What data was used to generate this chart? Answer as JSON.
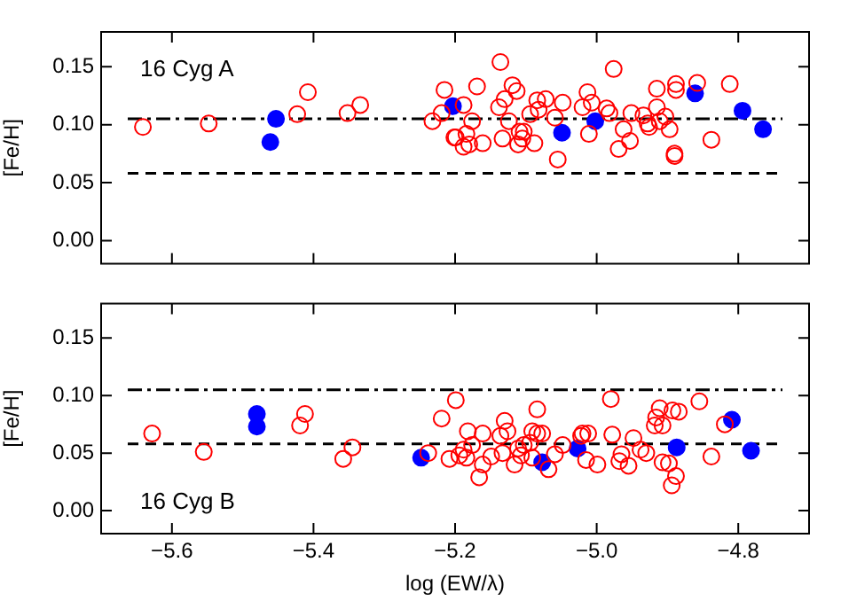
{
  "chart_data": [
    {
      "type": "scatter",
      "ylabel": "[Fe/H]",
      "annotations": [
        "16 Cyg A"
      ],
      "tick_labels": "y",
      "grid": false,
      "legend": false,
      "xlim": [
        -5.7,
        -4.7
      ],
      "xticks": [
        {
          "value": -5.6,
          "label": null
        },
        {
          "value": -5.4,
          "label": null
        },
        {
          "value": -5.2,
          "label": null
        },
        {
          "value": -5.0,
          "label": null
        },
        {
          "value": -4.8,
          "label": null
        }
      ],
      "ylim": [
        -0.02,
        0.18
      ],
      "yticks": [
        {
          "value": 0,
          "label": "0.00"
        },
        {
          "value": 0.05,
          "label": "0.05"
        },
        {
          "value": 0.1,
          "label": "0.10"
        },
        {
          "value": 0.15,
          "label": "0.15"
        }
      ],
      "ref_lines": [
        {
          "axis": "y",
          "value": 0.105,
          "line_style": "dashdot",
          "color": "#000000"
        },
        {
          "axis": "y",
          "value": 0.058,
          "line_style": "dashed",
          "color": "#000000"
        }
      ],
      "series": [
        {
          "color": "#ff0000",
          "marker": "circle-open",
          "x": [
            -5.641,
            -5.548,
            -5.423,
            -5.408,
            -5.352,
            -5.334,
            -5.232,
            -5.219,
            -5.215,
            -5.199,
            -5.188,
            -5.176,
            -5.201,
            -5.184,
            -5.188,
            -5.18,
            -5.169,
            -5.161,
            -5.136,
            -5.138,
            -5.13,
            -5.119,
            -5.113,
            -5.124,
            -5.133,
            -5.109,
            -5.103,
            -5.111,
            -5.105,
            -5.088,
            -5.094,
            -5.084,
            -5.082,
            -5.072,
            -5.059,
            -5.048,
            -5.055,
            -5.013,
            -5.02,
            -5.007,
            -5.011,
            -4.976,
            -4.986,
            -4.982,
            -4.962,
            -4.951,
            -4.969,
            -4.953,
            -4.934,
            -4.928,
            -4.926,
            -4.915,
            -4.915,
            -4.911,
            -4.903,
            -4.897,
            -4.888,
            -4.888,
            -4.89,
            -4.89,
            -4.858,
            -4.838,
            -4.812
          ],
          "values": [
            0.098,
            0.101,
            0.109,
            0.128,
            0.11,
            0.117,
            0.103,
            0.11,
            0.13,
            0.089,
            0.117,
            0.103,
            0.089,
            0.092,
            0.081,
            0.083,
            0.133,
            0.084,
            0.154,
            0.115,
            0.122,
            0.134,
            0.129,
            0.103,
            0.088,
            0.094,
            0.094,
            0.083,
            0.088,
            0.084,
            0.109,
            0.121,
            0.113,
            0.122,
            0.106,
            0.119,
            0.07,
            0.128,
            0.115,
            0.119,
            0.092,
            0.148,
            0.114,
            0.11,
            0.096,
            0.11,
            0.079,
            0.086,
            0.108,
            0.101,
            0.098,
            0.131,
            0.115,
            0.103,
            0.107,
            0.096,
            0.135,
            0.13,
            0.075,
            0.073,
            0.136,
            0.087,
            0.135
          ]
        },
        {
          "color": "#0000ff",
          "marker": "circle",
          "x": [
            -5.461,
            -5.453,
            -5.203,
            -5.049,
            -5.002,
            -4.861,
            -4.794,
            -4.765
          ],
          "values": [
            0.085,
            0.105,
            0.116,
            0.093,
            0.103,
            0.127,
            0.112,
            0.096
          ]
        }
      ]
    },
    {
      "type": "scatter",
      "xlabel": "log (EW/λ)",
      "ylabel": "[Fe/H]",
      "annotations": [
        "16 Cyg B"
      ],
      "grid": false,
      "legend": false,
      "xlim": [
        -5.7,
        -4.7
      ],
      "xticks": [
        {
          "value": -5.6,
          "label": "−5.6"
        },
        {
          "value": -5.4,
          "label": "−5.4"
        },
        {
          "value": -5.2,
          "label": "−5.2"
        },
        {
          "value": -5.0,
          "label": "−5.0"
        },
        {
          "value": -4.8,
          "label": "−4.8"
        }
      ],
      "ylim": [
        -0.02,
        0.18
      ],
      "yticks": [
        {
          "value": 0,
          "label": "0.00"
        },
        {
          "value": 0.05,
          "label": "0.05"
        },
        {
          "value": 0.1,
          "label": "0.10"
        },
        {
          "value": 0.15,
          "label": "0.15"
        }
      ],
      "ref_lines": [
        {
          "axis": "y",
          "value": 0.105,
          "line_style": "dashdot",
          "color": "#000000"
        },
        {
          "axis": "y",
          "value": 0.058,
          "line_style": "dashed",
          "color": "#000000"
        }
      ],
      "series": [
        {
          "color": "#ff0000",
          "marker": "circle-open",
          "x": [
            -5.628,
            -5.555,
            -5.419,
            -5.412,
            -5.358,
            -5.345,
            -5.238,
            -5.219,
            -5.208,
            -5.199,
            -5.194,
            -5.182,
            -5.161,
            -5.188,
            -5.184,
            -5.176,
            -5.166,
            -5.161,
            -5.149,
            -5.136,
            -5.13,
            -5.126,
            -5.133,
            -5.116,
            -5.111,
            -5.107,
            -5.103,
            -5.094,
            -5.091,
            -5.084,
            -5.084,
            -5.077,
            -5.091,
            -5.068,
            -5.059,
            -5.048,
            -5.02,
            -5.022,
            -5.012,
            -5.015,
            -4.999,
            -4.98,
            -4.978,
            -4.965,
            -4.968,
            -4.955,
            -4.948,
            -4.938,
            -4.93,
            -4.916,
            -4.911,
            -4.918,
            -4.907,
            -4.893,
            -4.884,
            -4.907,
            -4.898,
            -4.888,
            -4.894,
            -4.855,
            -4.838,
            -4.819
          ],
          "values": [
            0.067,
            0.051,
            0.074,
            0.084,
            0.045,
            0.055,
            0.05,
            0.08,
            0.045,
            0.096,
            0.048,
            0.069,
            0.067,
            0.053,
            0.046,
            0.057,
            0.029,
            0.04,
            0.047,
            0.065,
            0.078,
            0.069,
            0.05,
            0.04,
            0.054,
            0.048,
            0.057,
            0.059,
            0.069,
            0.088,
            0.067,
            0.067,
            0.046,
            0.036,
            0.049,
            0.057,
            0.067,
            0.065,
            0.067,
            0.044,
            0.04,
            0.097,
            0.066,
            0.049,
            0.043,
            0.039,
            0.063,
            0.053,
            0.05,
            0.081,
            0.089,
            0.074,
            0.074,
            0.087,
            0.086,
            0.042,
            0.041,
            0.03,
            0.022,
            0.095,
            0.047,
            0.075
          ]
        },
        {
          "color": "#0000ff",
          "marker": "circle",
          "x": [
            -5.48,
            -5.48,
            -5.248,
            -5.077,
            -5.027,
            -4.887,
            -4.809,
            -4.782
          ],
          "values": [
            0.084,
            0.073,
            0.046,
            0.042,
            0.054,
            0.055,
            0.079,
            0.052
          ]
        }
      ]
    }
  ]
}
